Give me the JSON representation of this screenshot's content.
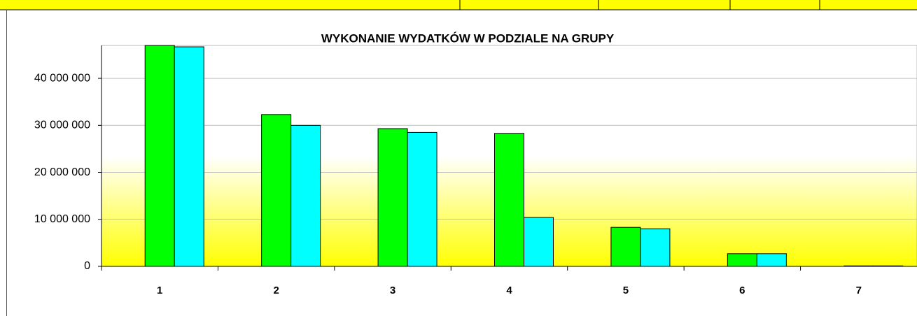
{
  "chart_data": {
    "type": "bar",
    "title": "WYKONANIE WYDATKÓW W PODZIALE NA GRUPY",
    "categories": [
      "1",
      "2",
      "3",
      "4",
      "5",
      "6",
      "7"
    ],
    "series": [
      {
        "color": "#00ff00",
        "values": [
          47000000,
          32300000,
          29300000,
          28300000,
          8300000,
          2700000,
          100000
        ]
      },
      {
        "color": "#00ffff",
        "values": [
          46700000,
          30000000,
          28500000,
          10400000,
          8000000,
          2700000,
          100000
        ]
      }
    ],
    "ylim": [
      0,
      47000000
    ],
    "yticks": [
      0,
      {
        "value": 10000000,
        "label": "10 000 000"
      },
      {
        "value": 20000000,
        "label": "20 000 000"
      },
      {
        "value": 30000000,
        "label": "30 000 000"
      },
      {
        "value": 40000000,
        "label": "40 000 000"
      }
    ],
    "grid": true
  }
}
